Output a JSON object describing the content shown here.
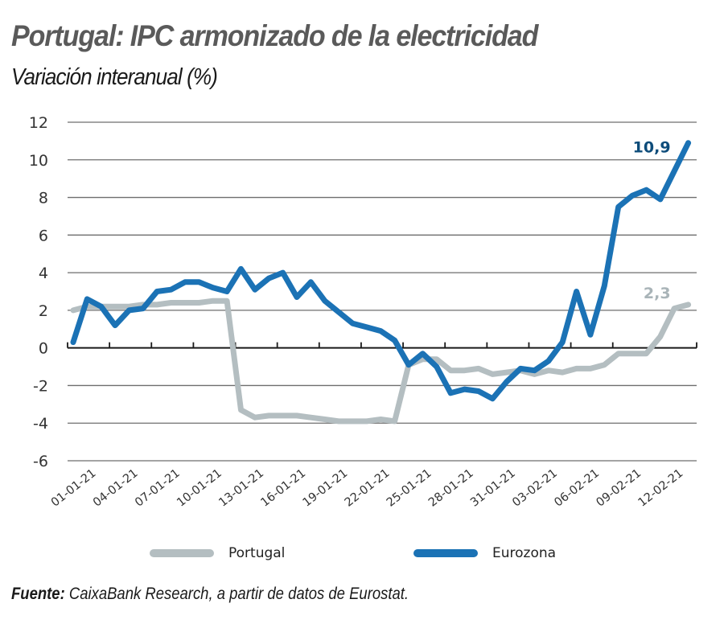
{
  "chart_data": {
    "type": "line",
    "title": "Portugal: IPC armonizado de la electricidad",
    "subtitle": "Variación interanual (%)",
    "xlabel": "",
    "ylabel": "",
    "ylim": [
      -6,
      12
    ],
    "yticks": [
      12,
      10,
      8,
      6,
      4,
      2,
      0,
      -2,
      -4,
      -6
    ],
    "grid": true,
    "legend_position": "bottom",
    "x_tick_labels": [
      "01-01-21",
      "04-01-21",
      "07-01-21",
      "10-01-21",
      "13-01-21",
      "16-01-21",
      "19-01-21",
      "22-01-21",
      "25-01-21",
      "28-01-21",
      "31-01-21",
      "03-02-21",
      "06-02-21",
      "09-02-21",
      "12-02-21"
    ],
    "points_per_label": 3,
    "series": [
      {
        "name": "Portugal",
        "color": "#b4bec1",
        "end_label": "2,3",
        "end_label_color": "#a9b4b8",
        "values": [
          2.0,
          2.2,
          2.2,
          2.2,
          2.2,
          2.3,
          2.3,
          2.4,
          2.4,
          2.4,
          2.5,
          2.5,
          -3.3,
          -3.7,
          -3.6,
          -3.6,
          -3.6,
          -3.7,
          -3.8,
          -3.9,
          -3.9,
          -3.9,
          -3.8,
          -3.9,
          -0.9,
          -0.6,
          -0.6,
          -1.2,
          -1.2,
          -1.1,
          -1.4,
          -1.3,
          -1.2,
          -1.4,
          -1.2,
          -1.3,
          -1.1,
          -1.1,
          -0.9,
          -0.3,
          -0.3,
          -0.3,
          0.6,
          2.1,
          2.3
        ]
      },
      {
        "name": "Eurozona",
        "color": "#1b72b5",
        "end_label": "10,9",
        "end_label_color": "#0d4c7a",
        "values": [
          0.3,
          2.6,
          2.2,
          1.2,
          2.0,
          2.1,
          3.0,
          3.1,
          3.5,
          3.5,
          3.2,
          3.0,
          4.2,
          3.1,
          3.7,
          4.0,
          2.7,
          3.5,
          2.5,
          1.9,
          1.3,
          1.1,
          0.9,
          0.4,
          -0.9,
          -0.3,
          -1.0,
          -2.4,
          -2.2,
          -2.3,
          -2.7,
          -1.8,
          -1.1,
          -1.2,
          -0.7,
          0.3,
          3.0,
          0.7,
          3.3,
          7.5,
          8.1,
          8.4,
          7.9,
          9.4,
          10.9
        ]
      }
    ]
  },
  "legend": [
    {
      "label": "Portugal",
      "color": "#b4bec1"
    },
    {
      "label": "Eurozona",
      "color": "#1b72b5"
    }
  ],
  "source": {
    "prefix": "Fuente:",
    "text": " CaixaBank Research, a partir de datos de Eurostat."
  }
}
